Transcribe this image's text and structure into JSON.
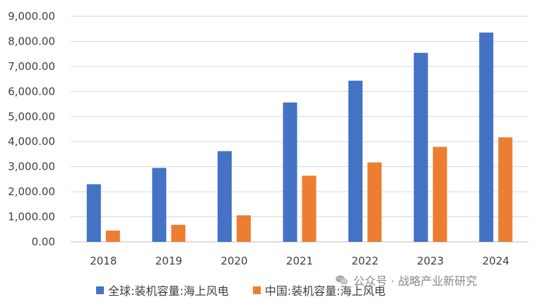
{
  "chart_data": {
    "type": "bar",
    "categories": [
      "2018",
      "2019",
      "2020",
      "2021",
      "2022",
      "2023",
      "2024"
    ],
    "series": [
      {
        "name": "全球:装机容量:海上风电",
        "color": "#4472C4",
        "values": [
          2300,
          2950,
          3620,
          5560,
          6430,
          7540,
          8350
        ]
      },
      {
        "name": "中国:装机容量:海上风电",
        "color": "#ED7D31",
        "values": [
          450,
          680,
          1060,
          2640,
          3170,
          3790,
          4170
        ]
      }
    ],
    "yticks": [
      "0.00",
      "1,000.00",
      "2,000.00",
      "3,000.00",
      "4,000.00",
      "5,000.00",
      "6,000.00",
      "7,000.00",
      "8,000.00",
      "9,000.00"
    ],
    "ylim": [
      0,
      9000
    ],
    "grid": true,
    "legend_position": "bottom"
  },
  "watermark": {
    "text": "公众号 · 战略产业新研究",
    "icon": "wechat-icon"
  }
}
